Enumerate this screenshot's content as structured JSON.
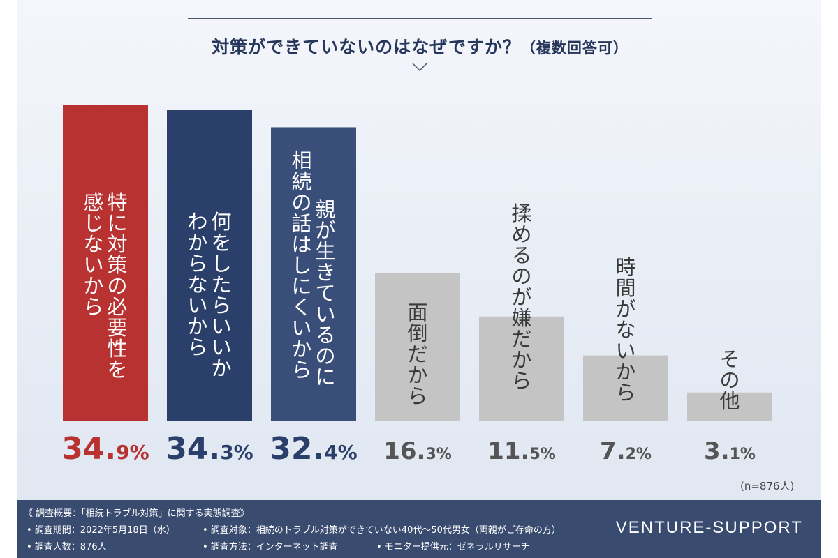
{
  "chart_data": {
    "type": "bar",
    "title": "対策ができていないのはなぜですか？",
    "subtitle": "（複数回答可）",
    "categories": [
      "特に対策の必要性を感じないから",
      "何をしたらいいかわからないから",
      "親が生きているのに相続の話はしにくいから",
      "面倒だから",
      "揉めるのが嫌だから",
      "時間がないから",
      "その他"
    ],
    "label_columns": [
      [
        "特に対策の必要性を",
        "感じないから"
      ],
      [
        "何をしたらいいか",
        "わからないから"
      ],
      [
        "親が生きているのに",
        "相続の話はしにくいから"
      ],
      [
        "面倒だから"
      ],
      [
        "揉めるのが嫌だから"
      ],
      [
        "時間がないから"
      ],
      [
        "その他"
      ]
    ],
    "values": [
      34.9,
      34.3,
      32.4,
      16.3,
      11.5,
      7.2,
      3.1
    ],
    "value_labels": [
      "34.9%",
      "34.3%",
      "32.4%",
      "16.3%",
      "11.5%",
      "7.2%",
      "3.1%"
    ],
    "ylim": [
      0,
      36
    ],
    "grid": false,
    "legend": "none",
    "note": "(n=876人)"
  },
  "colors": {
    "highlight_bar": "#b83232",
    "primary_bar": "#2b3f6b",
    "primary_bar_alt": "#3a4e7a",
    "muted_bar": "#c4c4c4",
    "highlight_value": "#b83232",
    "primary_value": "#2b3f6b",
    "muted_value": "#555555",
    "footer_bg": "#3a4b70"
  },
  "footer": {
    "line1": "《 調査概要：「相続トラブル対策」に関する実態調査》",
    "period": "• 調査期間：2022年5月18日（水）",
    "target": "• 調査対象：相続のトラブル対策ができていない40代～50代男女（両親がご存命の方）",
    "count": "• 調査人数：876人",
    "method": "• 調査方法：インターネット調査",
    "provider": "• モニター提供元：ゼネラルリサーチ",
    "brand": "VENTURE-SUPPORT"
  }
}
